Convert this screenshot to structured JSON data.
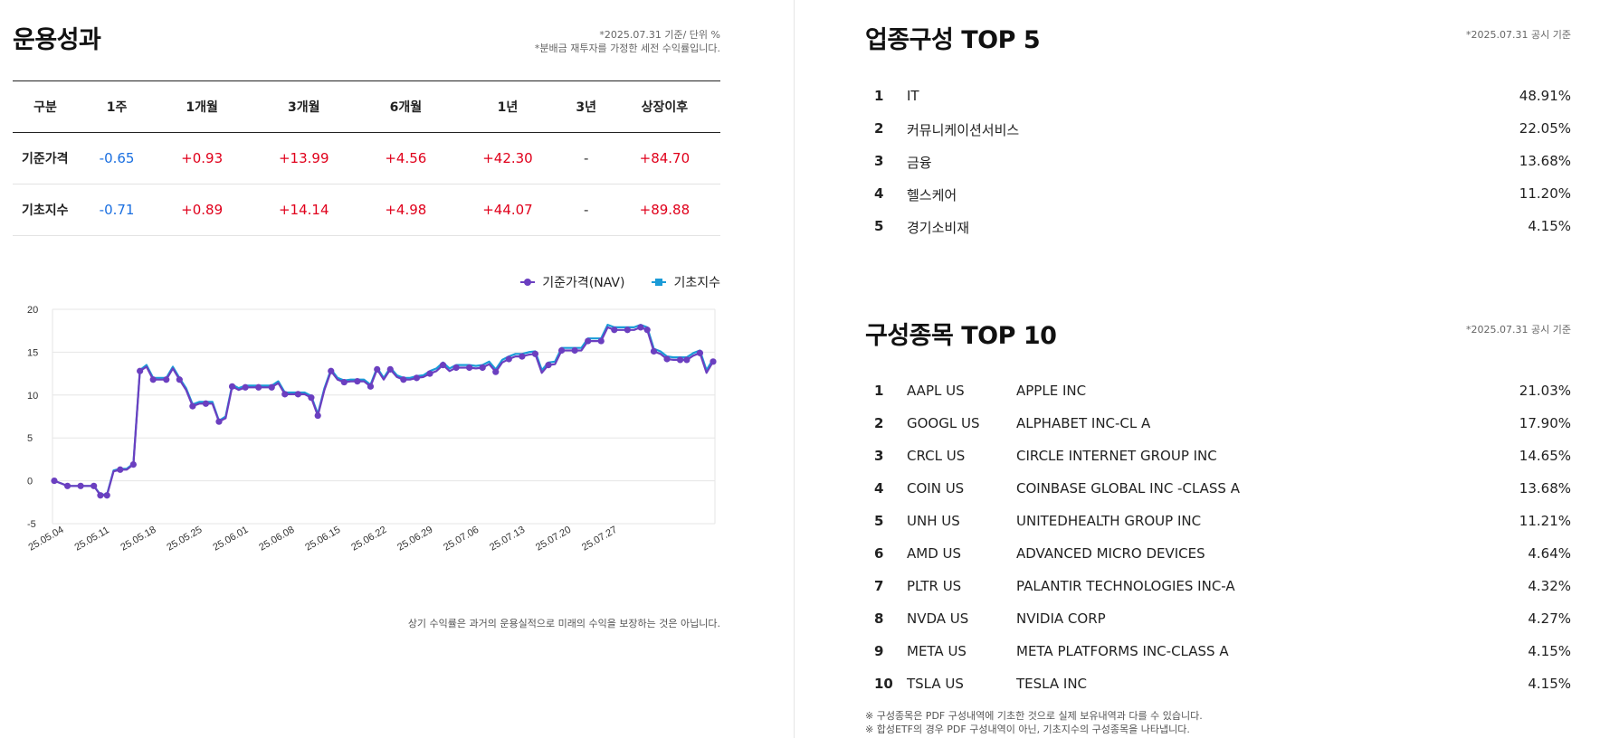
{
  "performance": {
    "title": "운용성과",
    "note_line1": "*2025.07.31 기준/ 단위 %",
    "note_line2": "*분배금 재투자를 가정한 세전 수익률입니다.",
    "headers": [
      "구분",
      "1주",
      "1개월",
      "3개월",
      "6개월",
      "1년",
      "3년",
      "상장이후"
    ],
    "rows": [
      {
        "label": "기준가격",
        "values": [
          "-0.65",
          "+0.93",
          "+13.99",
          "+4.56",
          "+42.30",
          "-",
          "+84.70"
        ]
      },
      {
        "label": "기초지수",
        "values": [
          "-0.71",
          "+0.89",
          "+14.14",
          "+4.98",
          "+44.07",
          "-",
          "+89.88"
        ]
      }
    ],
    "disclaimer": "상기 수익률은 과거의 운용실적으로 미래의 수익을 보장하는 것은 아닙니다."
  },
  "chart_data": {
    "type": "line",
    "legend_position": "top-right",
    "ylim": [
      -5,
      20
    ],
    "yticks": [
      "20",
      "15",
      "10",
      "5",
      "0",
      "-5"
    ],
    "xticks": [
      "25.05.04",
      "25.05.11",
      "25.05.18",
      "25.05.25",
      "25.06.01",
      "25.06.08",
      "25.06.15",
      "25.06.22",
      "25.06.29",
      "25.07.06",
      "25.07.13",
      "25.07.20",
      "25.07.27"
    ],
    "grid": true,
    "series": [
      {
        "name": "기준가격(NAV)",
        "color": "#6b3fc0",
        "values": [
          0,
          -0.3,
          -0.6,
          -0.6,
          -0.6,
          -0.6,
          -0.6,
          -1.7,
          -1.7,
          1.1,
          1.3,
          1.3,
          1.9,
          12.8,
          13.3,
          11.8,
          11.8,
          11.8,
          13.1,
          11.8,
          10.6,
          8.7,
          9.0,
          9.0,
          9.0,
          6.9,
          7.3,
          11.0,
          10.6,
          10.9,
          10.9,
          10.9,
          10.9,
          10.9,
          11.4,
          10.1,
          10.1,
          10.1,
          10.1,
          9.7,
          7.6,
          10.6,
          12.8,
          11.8,
          11.5,
          11.6,
          11.6,
          11.6,
          11.0,
          13.0,
          11.8,
          13.0,
          12.1,
          11.8,
          11.8,
          12.0,
          12.1,
          12.5,
          12.8,
          13.5,
          12.8,
          13.2,
          13.2,
          13.2,
          13.1,
          13.2,
          13.6,
          12.7,
          13.8,
          14.2,
          14.5,
          14.5,
          14.7,
          14.8,
          12.6,
          13.5,
          13.6,
          15.2,
          15.2,
          15.2,
          15.2,
          16.3,
          16.3,
          16.3,
          17.9,
          17.6,
          17.6,
          17.6,
          17.6,
          17.9,
          17.6,
          15.1,
          14.8,
          14.2,
          14.1,
          14.1,
          14.1,
          14.6,
          14.9,
          12.6,
          13.9
        ]
      },
      {
        "name": "기초지수",
        "color": "#1a9bd7",
        "values": [
          0,
          -0.3,
          -0.6,
          -0.6,
          -0.6,
          -0.6,
          -0.6,
          -1.6,
          -1.6,
          1.2,
          1.4,
          1.4,
          2.0,
          12.9,
          13.5,
          12.0,
          12.0,
          12.0,
          13.3,
          12.0,
          10.8,
          8.9,
          9.2,
          9.2,
          9.2,
          7.0,
          7.5,
          11.2,
          10.8,
          11.1,
          11.1,
          11.1,
          11.1,
          11.1,
          11.6,
          10.3,
          10.3,
          10.3,
          10.3,
          9.9,
          7.8,
          10.8,
          13.0,
          12.0,
          11.7,
          11.8,
          11.8,
          11.8,
          11.2,
          13.2,
          12.0,
          13.2,
          12.3,
          12.0,
          12.0,
          12.2,
          12.3,
          12.8,
          13.1,
          13.8,
          13.1,
          13.5,
          13.5,
          13.5,
          13.4,
          13.5,
          13.9,
          13.0,
          14.1,
          14.5,
          14.8,
          14.8,
          15.0,
          15.1,
          12.9,
          13.8,
          13.9,
          15.5,
          15.5,
          15.5,
          15.5,
          16.6,
          16.6,
          16.6,
          18.2,
          17.9,
          17.9,
          17.9,
          17.9,
          18.2,
          17.9,
          15.4,
          15.1,
          14.5,
          14.4,
          14.4,
          14.4,
          14.9,
          15.2,
          12.9,
          14.2
        ]
      }
    ]
  },
  "sectors": {
    "title": "업종구성 TOP 5",
    "note": "*2025.07.31 공시 기준",
    "items": [
      {
        "rank": "1",
        "name": "IT",
        "pct": "48.91%"
      },
      {
        "rank": "2",
        "name": "커뮤니케이션서비스",
        "pct": "22.05%"
      },
      {
        "rank": "3",
        "name": "금융",
        "pct": "13.68%"
      },
      {
        "rank": "4",
        "name": "헬스케어",
        "pct": "11.20%"
      },
      {
        "rank": "5",
        "name": "경기소비재",
        "pct": "4.15%"
      }
    ]
  },
  "holdings": {
    "title": "구성종목 TOP 10",
    "note": "*2025.07.31 공시 기준",
    "items": [
      {
        "rank": "1",
        "ticker": "AAPL US",
        "name": "APPLE INC",
        "pct": "21.03%"
      },
      {
        "rank": "2",
        "ticker": "GOOGL US",
        "name": "ALPHABET INC-CL A",
        "pct": "17.90%"
      },
      {
        "rank": "3",
        "ticker": "CRCL US",
        "name": "CIRCLE INTERNET GROUP INC",
        "pct": "14.65%"
      },
      {
        "rank": "4",
        "ticker": "COIN US",
        "name": "COINBASE GLOBAL INC -CLASS A",
        "pct": "13.68%"
      },
      {
        "rank": "5",
        "ticker": "UNH US",
        "name": "UNITEDHEALTH GROUP INC",
        "pct": "11.21%"
      },
      {
        "rank": "6",
        "ticker": "AMD US",
        "name": "ADVANCED MICRO DEVICES",
        "pct": "4.64%"
      },
      {
        "rank": "7",
        "ticker": "PLTR US",
        "name": "PALANTIR TECHNOLOGIES INC-A",
        "pct": "4.32%"
      },
      {
        "rank": "8",
        "ticker": "NVDA US",
        "name": "NVIDIA CORP",
        "pct": "4.27%"
      },
      {
        "rank": "9",
        "ticker": "META US",
        "name": "META PLATFORMS INC-CLASS A",
        "pct": "4.15%"
      },
      {
        "rank": "10",
        "ticker": "TSLA US",
        "name": "TESLA INC",
        "pct": "4.15%"
      }
    ],
    "footnote1": "※ 구성종목은 PDF 구성내역에 기초한 것으로 실제 보유내역과 다를 수 있습니다.",
    "footnote2": "※ 합성ETF의 경우 PDF 구성내역이 아닌, 기초지수의 구성종목을 나타냅니다."
  }
}
